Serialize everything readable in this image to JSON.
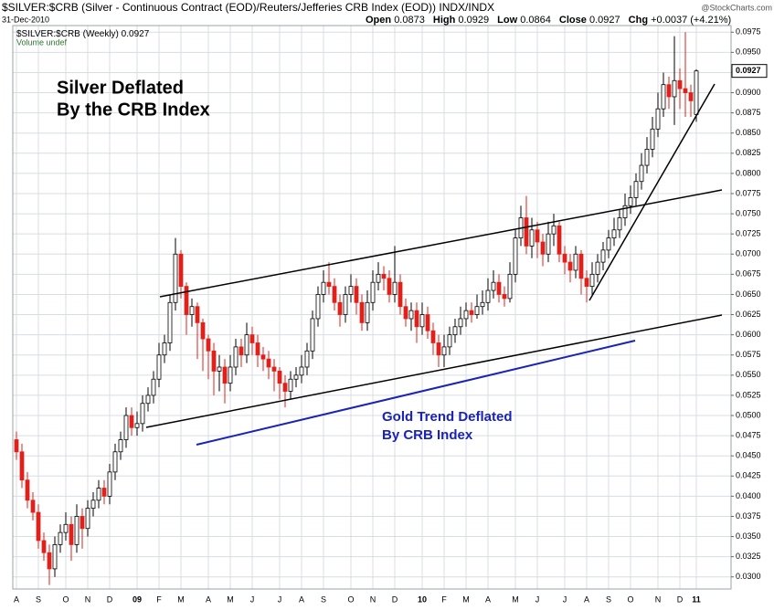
{
  "chart_data": {
    "type": "candlestick",
    "title": "$SILVER:$CRB (Silver - Continuous Contract (EOD)/Reuters/Jefferies CRB Index (EOD))  INDX/INDX",
    "source": "@StockCharts.com",
    "date": "31-Dec-2010",
    "ohlc_labels": [
      "Open",
      "High",
      "Low",
      "Close"
    ],
    "change_label": "Chg",
    "change": "+0.0037 (+4.21%)",
    "legend": "$SILVER:$CRB (Weekly)",
    "volume_note": "Volume undef",
    "annotations": [
      "Silver Deflated",
      "By the CRB Index",
      "Gold Trend Deflated",
      "By CRB Index"
    ],
    "up_color": "#000000",
    "down_color": "#e0201b",
    "grid": true,
    "categories": [
      "A",
      null,
      null,
      null,
      "S",
      null,
      null,
      null,
      null,
      "O",
      null,
      null,
      null,
      "N",
      null,
      null,
      null,
      "D",
      null,
      null,
      null,
      null,
      "09",
      null,
      null,
      null,
      "F",
      null,
      null,
      null,
      "M",
      null,
      null,
      null,
      null,
      "A",
      null,
      null,
      null,
      "M",
      null,
      null,
      null,
      "J",
      null,
      null,
      null,
      null,
      "J",
      null,
      null,
      null,
      "A",
      null,
      null,
      null,
      "S",
      null,
      null,
      null,
      null,
      "O",
      null,
      null,
      null,
      "N",
      null,
      null,
      null,
      "D",
      null,
      null,
      null,
      null,
      "10",
      null,
      null,
      null,
      "F",
      null,
      null,
      null,
      "M",
      null,
      null,
      null,
      "A",
      null,
      null,
      null,
      null,
      "M",
      null,
      null,
      null,
      "J",
      null,
      null,
      null,
      null,
      "J",
      null,
      null,
      null,
      "A",
      null,
      null,
      null,
      "S",
      null,
      null,
      null,
      "O",
      null,
      null,
      null,
      null,
      "N",
      null,
      null,
      null,
      "D",
      null,
      null,
      "11"
    ],
    "open": [
      0.047,
      0.0455,
      0.042,
      0.0395,
      0.038,
      0.0345,
      0.033,
      0.031,
      0.034,
      0.0355,
      0.0365,
      0.034,
      0.0375,
      0.036,
      0.0385,
      0.0395,
      0.041,
      0.04,
      0.043,
      0.0455,
      0.047,
      0.05,
      0.0485,
      0.049,
      0.0515,
      0.0525,
      0.0545,
      0.0575,
      0.059,
      0.064,
      0.07,
      0.066,
      0.0625,
      0.0635,
      0.0615,
      0.0595,
      0.058,
      0.0555,
      0.056,
      0.054,
      0.056,
      0.0585,
      0.0575,
      0.06,
      0.059,
      0.0575,
      0.057,
      0.056,
      0.0555,
      0.054,
      0.053,
      0.0545,
      0.055,
      0.056,
      0.058,
      0.062,
      0.065,
      0.0665,
      0.066,
      0.064,
      0.0625,
      0.065,
      0.066,
      0.064,
      0.0615,
      0.064,
      0.0665,
      0.0675,
      0.067,
      0.065,
      0.0665,
      0.0635,
      0.062,
      0.063,
      0.061,
      0.0625,
      0.0605,
      0.059,
      0.0575,
      0.0585,
      0.06,
      0.061,
      0.062,
      0.063,
      0.0625,
      0.0635,
      0.064,
      0.0655,
      0.0665,
      0.065,
      0.0645,
      0.0675,
      0.072,
      0.0745,
      0.071,
      0.073,
      0.0715,
      0.07,
      0.0725,
      0.0735,
      0.07,
      0.069,
      0.068,
      0.07,
      0.067,
      0.066,
      0.0675,
      0.069,
      0.0705,
      0.072,
      0.073,
      0.0745,
      0.076,
      0.077,
      0.079,
      0.081,
      0.083,
      0.0855,
      0.088,
      0.091,
      0.0895,
      0.0915,
      0.0905,
      0.09,
      0.0873
    ],
    "high": [
      0.048,
      0.0465,
      0.043,
      0.0405,
      0.039,
      0.0355,
      0.034,
      0.035,
      0.0365,
      0.038,
      0.0375,
      0.039,
      0.0385,
      0.0395,
      0.0405,
      0.042,
      0.042,
      0.044,
      0.0465,
      0.048,
      0.051,
      0.051,
      0.0505,
      0.0525,
      0.0535,
      0.0555,
      0.059,
      0.06,
      0.065,
      0.072,
      0.0705,
      0.0665,
      0.0645,
      0.064,
      0.062,
      0.06,
      0.059,
      0.0575,
      0.057,
      0.0575,
      0.0595,
      0.0595,
      0.0615,
      0.061,
      0.06,
      0.0585,
      0.058,
      0.057,
      0.056,
      0.055,
      0.0555,
      0.056,
      0.0575,
      0.059,
      0.063,
      0.066,
      0.068,
      0.069,
      0.067,
      0.065,
      0.066,
      0.0675,
      0.067,
      0.065,
      0.0655,
      0.068,
      0.069,
      0.0685,
      0.068,
      0.071,
      0.0675,
      0.0645,
      0.064,
      0.064,
      0.064,
      0.0635,
      0.0615,
      0.06,
      0.06,
      0.061,
      0.062,
      0.0635,
      0.064,
      0.064,
      0.065,
      0.0655,
      0.067,
      0.068,
      0.0675,
      0.066,
      0.069,
      0.073,
      0.076,
      0.0772,
      0.0745,
      0.074,
      0.0725,
      0.074,
      0.075,
      0.074,
      0.071,
      0.07,
      0.071,
      0.0705,
      0.068,
      0.069,
      0.07,
      0.0715,
      0.073,
      0.0745,
      0.0755,
      0.0775,
      0.0785,
      0.08,
      0.0825,
      0.0845,
      0.087,
      0.09,
      0.0925,
      0.092,
      0.097,
      0.093,
      0.0975,
      0.091,
      0.0929
    ],
    "low": [
      0.0445,
      0.041,
      0.0385,
      0.037,
      0.0335,
      0.032,
      0.029,
      0.03,
      0.033,
      0.0345,
      0.032,
      0.033,
      0.0335,
      0.035,
      0.0375,
      0.0385,
      0.039,
      0.039,
      0.042,
      0.0445,
      0.046,
      0.0475,
      0.0475,
      0.048,
      0.0505,
      0.0515,
      0.0535,
      0.0565,
      0.058,
      0.063,
      0.0645,
      0.06,
      0.061,
      0.057,
      0.0555,
      0.0545,
      0.0525,
      0.053,
      0.0515,
      0.053,
      0.055,
      0.056,
      0.0565,
      0.0575,
      0.056,
      0.0555,
      0.0545,
      0.053,
      0.052,
      0.051,
      0.052,
      0.0535,
      0.054,
      0.055,
      0.057,
      0.061,
      0.064,
      0.065,
      0.063,
      0.061,
      0.0615,
      0.064,
      0.0625,
      0.0605,
      0.0605,
      0.063,
      0.0655,
      0.0655,
      0.064,
      0.064,
      0.0625,
      0.061,
      0.0605,
      0.059,
      0.06,
      0.0595,
      0.0575,
      0.056,
      0.056,
      0.0575,
      0.059,
      0.06,
      0.061,
      0.0615,
      0.062,
      0.0625,
      0.063,
      0.0645,
      0.064,
      0.0635,
      0.064,
      0.0665,
      0.071,
      0.07,
      0.0695,
      0.0695,
      0.0685,
      0.069,
      0.071,
      0.069,
      0.0675,
      0.0665,
      0.067,
      0.065,
      0.064,
      0.065,
      0.0665,
      0.068,
      0.0695,
      0.071,
      0.072,
      0.0735,
      0.075,
      0.076,
      0.078,
      0.08,
      0.082,
      0.0845,
      0.087,
      0.088,
      0.086,
      0.088,
      0.087,
      0.087,
      0.0864
    ],
    "close": [
      0.0455,
      0.042,
      0.0395,
      0.038,
      0.0345,
      0.033,
      0.031,
      0.034,
      0.0355,
      0.0365,
      0.034,
      0.0375,
      0.036,
      0.0385,
      0.0395,
      0.041,
      0.04,
      0.043,
      0.0455,
      0.047,
      0.05,
      0.0485,
      0.049,
      0.0515,
      0.0525,
      0.0545,
      0.0575,
      0.059,
      0.064,
      0.07,
      0.066,
      0.0625,
      0.0635,
      0.0615,
      0.0595,
      0.058,
      0.0555,
      0.056,
      0.054,
      0.056,
      0.0585,
      0.0575,
      0.06,
      0.059,
      0.0575,
      0.057,
      0.056,
      0.0555,
      0.054,
      0.053,
      0.0545,
      0.055,
      0.056,
      0.058,
      0.062,
      0.065,
      0.0665,
      0.066,
      0.064,
      0.0625,
      0.065,
      0.066,
      0.064,
      0.0615,
      0.064,
      0.0665,
      0.0675,
      0.067,
      0.065,
      0.0665,
      0.0635,
      0.062,
      0.063,
      0.061,
      0.0625,
      0.0605,
      0.059,
      0.0575,
      0.0585,
      0.06,
      0.061,
      0.062,
      0.063,
      0.0625,
      0.0635,
      0.064,
      0.0655,
      0.0665,
      0.065,
      0.0645,
      0.0675,
      0.072,
      0.0745,
      0.071,
      0.073,
      0.0715,
      0.07,
      0.0725,
      0.0735,
      0.07,
      0.069,
      0.068,
      0.07,
      0.067,
      0.066,
      0.0675,
      0.069,
      0.0705,
      0.072,
      0.073,
      0.0745,
      0.076,
      0.077,
      0.079,
      0.081,
      0.083,
      0.0855,
      0.088,
      0.091,
      0.0895,
      0.0915,
      0.0905,
      0.09,
      0.089,
      0.0927
    ],
    "ylim": [
      0.0285,
      0.099
    ],
    "yticks": [
      {
        "value": 0.03,
        "label": "0.0300"
      },
      {
        "value": 0.0325,
        "label": "0.0325"
      },
      {
        "value": 0.035,
        "label": "0.0350"
      },
      {
        "value": 0.0375,
        "label": "0.0375"
      },
      {
        "value": 0.04,
        "label": "0.0400"
      },
      {
        "value": 0.0425,
        "label": "0.0425"
      },
      {
        "value": 0.045,
        "label": "0.0450"
      },
      {
        "value": 0.0475,
        "label": "0.0475"
      },
      {
        "value": 0.05,
        "label": "0.0500"
      },
      {
        "value": 0.0525,
        "label": "0.0525"
      },
      {
        "value": 0.055,
        "label": "0.0550"
      },
      {
        "value": 0.0575,
        "label": "0.0575"
      },
      {
        "value": 0.06,
        "label": "0.0600"
      },
      {
        "value": 0.0625,
        "label": "0.0625"
      },
      {
        "value": 0.065,
        "label": "0.0650"
      },
      {
        "value": 0.0675,
        "label": "0.0675"
      },
      {
        "value": 0.07,
        "label": "0.0700"
      },
      {
        "value": 0.0725,
        "label": "0.0725"
      },
      {
        "value": 0.075,
        "label": "0.0750"
      },
      {
        "value": 0.0775,
        "label": "0.0775"
      },
      {
        "value": 0.08,
        "label": "0.0800"
      },
      {
        "value": 0.0825,
        "label": "0.0825"
      },
      {
        "value": 0.085,
        "label": "0.0850"
      },
      {
        "value": 0.0875,
        "label": "0.0875"
      },
      {
        "value": 0.09,
        "label": "0.0900"
      },
      {
        "value": 0.0925,
        "label": "0.0925"
      },
      {
        "value": 0.095,
        "label": "0.0950"
      },
      {
        "value": 0.0975,
        "label": "0.0975"
      }
    ]
  }
}
